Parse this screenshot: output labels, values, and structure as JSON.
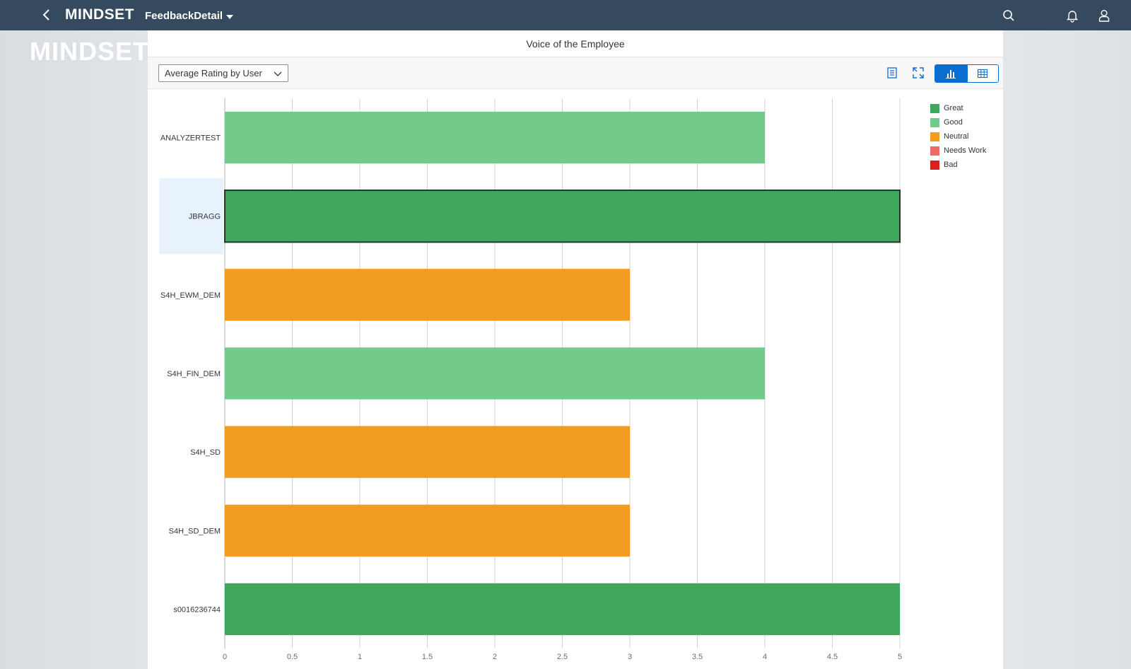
{
  "shell": {
    "brand": "MINDSET",
    "app_title": "FeedbackDetail"
  },
  "watermark": "MINDSET",
  "card": {
    "title": "Voice of the Employee",
    "select_value": "Average Rating by User"
  },
  "legend": [
    {
      "label": "Great",
      "color": "#3fa75b"
    },
    {
      "label": "Good",
      "color": "#72cb8b"
    },
    {
      "label": "Neutral",
      "color": "#f19d22"
    },
    {
      "label": "Needs Work",
      "color": "#ef6a6a"
    },
    {
      "label": "Bad",
      "color": "#db1f1f"
    }
  ],
  "chart_data": {
    "type": "bar",
    "orientation": "horizontal",
    "categories": [
      "ANALYZERTEST",
      "JBRAGG",
      "S4H_EWM_DEM",
      "S4H_FIN_DEM",
      "S4H_SD",
      "S4H_SD_DEM",
      "s0016236744"
    ],
    "values": [
      4,
      5,
      3,
      4,
      3,
      3,
      5
    ],
    "ratings": [
      "Good",
      "Great",
      "Neutral",
      "Good",
      "Neutral",
      "Neutral",
      "Great"
    ],
    "selected_category": "JBRAGG",
    "xlim": [
      0,
      5
    ],
    "xticks": [
      "0",
      "0.5",
      "1",
      "1.5",
      "2",
      "2.5",
      "3",
      "3.5",
      "4",
      "4.5",
      "5"
    ],
    "xtick_values": [
      0,
      0.5,
      1,
      1.5,
      2,
      2.5,
      3,
      3.5,
      4,
      4.5,
      5
    ],
    "grid": true,
    "legend_position": "top-right"
  }
}
